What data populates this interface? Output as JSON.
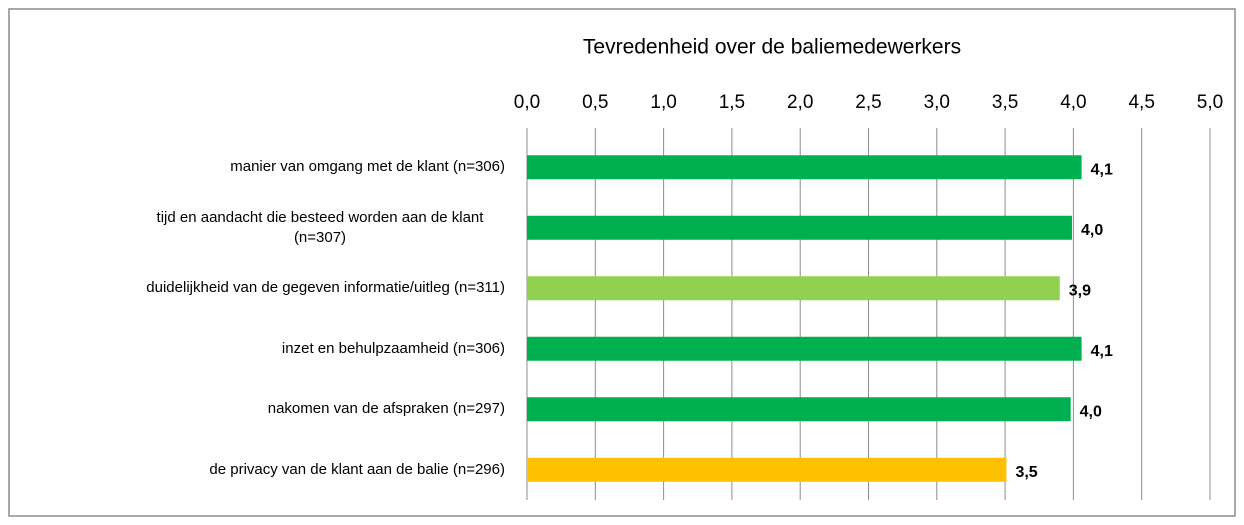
{
  "chart_data": {
    "type": "barh",
    "title": "Tevredenheid over de baliemedewerkers",
    "categories": [
      "manier van omgang met de klant (n=306)",
      "tijd en aandacht die besteed worden aan de klant (n=307)",
      "duidelijkheid van de gegeven informatie/uitleg (n=311)",
      "inzet en behulpzaamheid (n=306)",
      "nakomen van de afspraken (n=297)",
      "de privacy van de klant aan de balie (n=296)"
    ],
    "values": [
      4.06,
      3.99,
      3.9,
      4.06,
      3.98,
      3.51
    ],
    "value_labels": [
      "4,1",
      "4,0",
      "3,9",
      "4,1",
      "4,0",
      "3,5"
    ],
    "colors": [
      "#00b050",
      "#00b050",
      "#92d050",
      "#00b050",
      "#00b050",
      "#ffc000"
    ],
    "xlim": [
      0,
      5
    ],
    "xticks": [
      {
        "value": 0,
        "label": "0,0"
      },
      {
        "value": 0.5,
        "label": "0,5"
      },
      {
        "value": 1,
        "label": "1,0"
      },
      {
        "value": 1.5,
        "label": "1,5"
      },
      {
        "value": 2,
        "label": "2,0"
      },
      {
        "value": 2.5,
        "label": "2,5"
      },
      {
        "value": 3,
        "label": "3,0"
      },
      {
        "value": 3.5,
        "label": "3,5"
      },
      {
        "value": 4,
        "label": "4,0"
      },
      {
        "value": 4.5,
        "label": "4,5"
      },
      {
        "value": 5,
        "label": "5,0"
      }
    ],
    "grid": true
  }
}
